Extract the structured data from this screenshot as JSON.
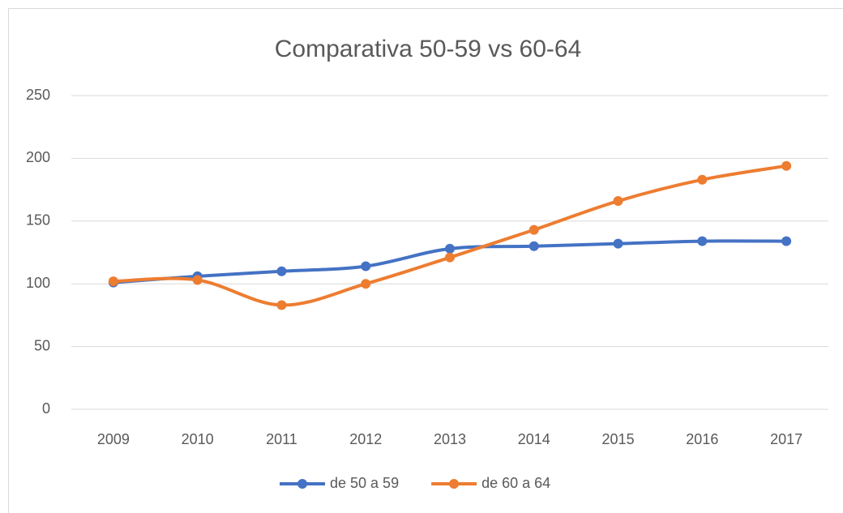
{
  "chart_data": {
    "type": "line",
    "title": "Comparativa 50-59 vs 60-64",
    "categories": [
      "2009",
      "2010",
      "2011",
      "2012",
      "2013",
      "2014",
      "2015",
      "2016",
      "2017"
    ],
    "series": [
      {
        "name": "de 50 a 59",
        "color": "#4472c4",
        "values": [
          101,
          106,
          110,
          114,
          128,
          130,
          132,
          134,
          134
        ]
      },
      {
        "name": "de 60 a 64",
        "color": "#ed7d31",
        "values": [
          102,
          103,
          83,
          100,
          121,
          143,
          166,
          183,
          194
        ]
      }
    ],
    "ylim": [
      0,
      250
    ],
    "yticks": [
      0,
      50,
      100,
      150,
      200,
      250
    ],
    "grid": true,
    "smooth": true,
    "legend": "bottom"
  }
}
